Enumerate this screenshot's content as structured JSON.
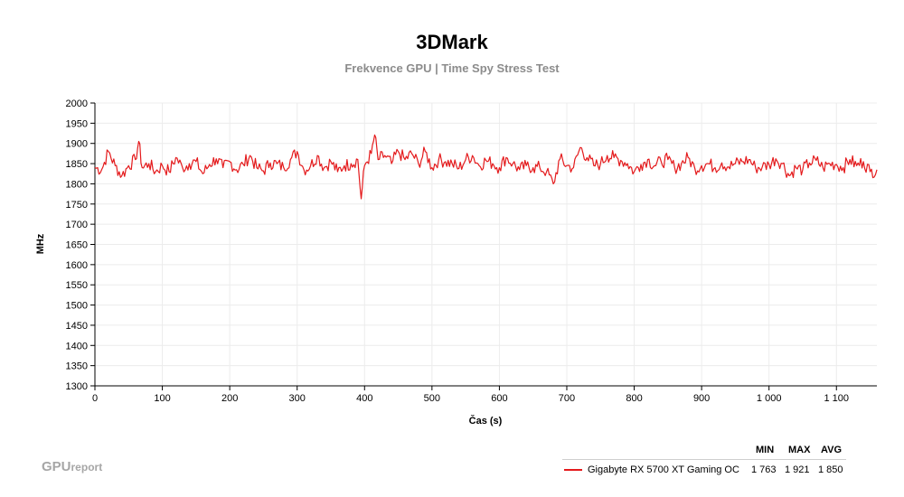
{
  "header": {
    "title": "3DMark",
    "subtitle": "Frekvence GPU | Time Spy Stress Test"
  },
  "logo": {
    "main": "GPU",
    "sub": "report"
  },
  "legend": {
    "headers": {
      "min": "MIN",
      "max": "MAX",
      "avg": "AVG"
    },
    "rows": [
      {
        "name": "Gigabyte RX 5700 XT Gaming OC",
        "min": "1 763",
        "max": "1 921",
        "avg": "1 850",
        "color": "#e41a1c"
      }
    ]
  },
  "chart_data": {
    "type": "line",
    "title": "3DMark",
    "subtitle": "Frekvence GPU | Time Spy Stress Test",
    "xlabel": "Čas (s)",
    "ylabel": "MHz",
    "xlim": [
      0,
      1160
    ],
    "ylim": [
      1300,
      2000
    ],
    "x_ticks": [
      0,
      100,
      200,
      300,
      400,
      500,
      600,
      700,
      800,
      900,
      1000,
      1100
    ],
    "x_tick_labels": [
      "0",
      "100",
      "200",
      "300",
      "400",
      "500",
      "600",
      "700",
      "800",
      "900",
      "1 000",
      "1 100"
    ],
    "y_ticks": [
      1300,
      1350,
      1400,
      1450,
      1500,
      1550,
      1600,
      1650,
      1700,
      1750,
      1800,
      1850,
      1900,
      1950,
      2000
    ],
    "grid": true,
    "series": [
      {
        "name": "Gigabyte RX 5700 XT Gaming OC",
        "color": "#e41a1c",
        "min": 1763,
        "max": 1921,
        "avg": 1850,
        "x": [
          0,
          10,
          20,
          30,
          40,
          50,
          60,
          65,
          70,
          80,
          90,
          100,
          110,
          120,
          130,
          140,
          150,
          160,
          170,
          180,
          190,
          200,
          210,
          220,
          230,
          240,
          250,
          260,
          270,
          280,
          290,
          300,
          310,
          320,
          330,
          340,
          350,
          360,
          370,
          380,
          390,
          395,
          400,
          410,
          415,
          420,
          430,
          440,
          450,
          460,
          470,
          480,
          490,
          500,
          510,
          520,
          530,
          540,
          550,
          560,
          570,
          580,
          590,
          600,
          610,
          620,
          630,
          640,
          650,
          660,
          670,
          680,
          690,
          700,
          710,
          720,
          730,
          740,
          750,
          760,
          770,
          780,
          790,
          800,
          810,
          820,
          830,
          840,
          850,
          860,
          870,
          880,
          890,
          900,
          910,
          920,
          930,
          940,
          950,
          960,
          970,
          980,
          990,
          1000,
          1010,
          1020,
          1030,
          1040,
          1050,
          1060,
          1070,
          1080,
          1090,
          1100,
          1110,
          1120,
          1130,
          1140,
          1150,
          1160
        ],
        "y": [
          1840,
          1835,
          1880,
          1845,
          1820,
          1845,
          1860,
          1905,
          1840,
          1850,
          1830,
          1845,
          1830,
          1865,
          1840,
          1850,
          1855,
          1825,
          1848,
          1862,
          1840,
          1855,
          1835,
          1848,
          1870,
          1840,
          1832,
          1852,
          1850,
          1840,
          1860,
          1880,
          1835,
          1845,
          1870,
          1840,
          1855,
          1830,
          1845,
          1850,
          1860,
          1763,
          1845,
          1875,
          1921,
          1860,
          1870,
          1850,
          1880,
          1860,
          1875,
          1850,
          1880,
          1840,
          1860,
          1855,
          1850,
          1838,
          1860,
          1870,
          1845,
          1858,
          1850,
          1840,
          1865,
          1850,
          1835,
          1845,
          1840,
          1840,
          1830,
          1800,
          1862,
          1845,
          1840,
          1890,
          1865,
          1845,
          1850,
          1870,
          1865,
          1858,
          1850,
          1830,
          1848,
          1860,
          1845,
          1855,
          1860,
          1840,
          1850,
          1865,
          1838,
          1845,
          1850,
          1840,
          1852,
          1842,
          1850,
          1855,
          1860,
          1840,
          1842,
          1848,
          1862,
          1850,
          1820,
          1840,
          1835,
          1852,
          1858,
          1840,
          1850,
          1848,
          1840,
          1860,
          1845,
          1855,
          1830,
          1835
        ]
      }
    ]
  }
}
